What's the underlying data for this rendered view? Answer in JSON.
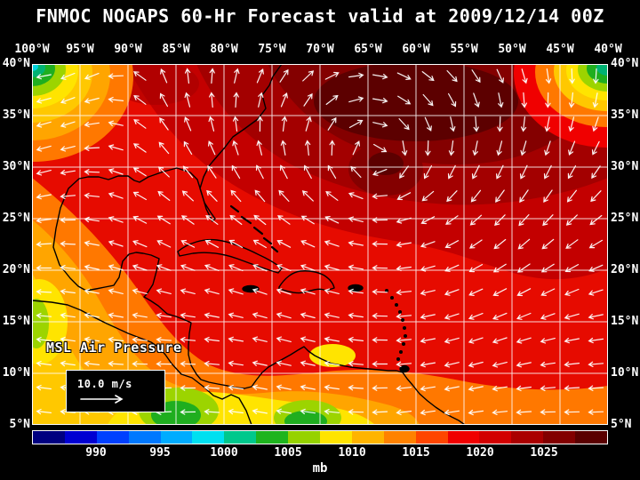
{
  "title": "FNMOC NOGAPS 60-Hr Forecast valid at 2009/12/14 00Z",
  "map": {
    "label": "MSL Air Pressure",
    "wind_legend": "10.0 m/s",
    "lon_labels": [
      "100°W",
      "95°W",
      "90°W",
      "85°W",
      "80°W",
      "75°W",
      "70°W",
      "65°W",
      "60°W",
      "55°W",
      "50°W",
      "45°W",
      "40°W"
    ],
    "lat_labels": [
      "40°N",
      "35°N",
      "30°N",
      "25°N",
      "20°N",
      "15°N",
      "10°N",
      "5°N"
    ]
  },
  "colorbar": {
    "unit": "mb",
    "tick_labels": [
      "990",
      "995",
      "1000",
      "1005",
      "1010",
      "1015",
      "1020",
      "1025"
    ],
    "colors": [
      "#000080",
      "#0000d2",
      "#0040ff",
      "#0078ff",
      "#00acff",
      "#00e0f0",
      "#00c88c",
      "#1eb41e",
      "#96d200",
      "#ffe400",
      "#ffb400",
      "#ff8200",
      "#ff4600",
      "#f00000",
      "#d20000",
      "#aa0000",
      "#820000",
      "#5a0000"
    ]
  },
  "chart_data": {
    "type": "heatmap",
    "title": "FNMOC NOGAPS 60-Hr Forecast valid at 2009/12/14 00Z",
    "field": "MSL Air Pressure",
    "unit": "mb",
    "x_ticks": [
      "100°W",
      "95°W",
      "90°W",
      "85°W",
      "80°W",
      "75°W",
      "70°W",
      "65°W",
      "60°W",
      "55°W",
      "50°W",
      "45°W",
      "40°W"
    ],
    "y_ticks": [
      "40°N",
      "35°N",
      "30°N",
      "25°N",
      "20°N",
      "15°N",
      "10°N",
      "5°N"
    ],
    "colorbar_ticks_mb": [
      990,
      995,
      1000,
      1005,
      1010,
      1015,
      1020,
      1025
    ],
    "wind_reference_m_s": 10.0,
    "features": [
      {
        "feature": "subtropical high with clockwise wind circulation",
        "approx_center": "32°N 65°W",
        "approx_peak_mb": 1026
      },
      {
        "feature": "broad 1015-1022 mb (red to dark red) field over western Atlantic and Caribbean"
      },
      {
        "feature": "1007-1013 mb (orange) over Gulf of Mexico, Mexico and Central America"
      },
      {
        "feature": "~1002-1007 mb (yellow-green) pockets at NW corner, NE corner, near Panama and northern South America"
      },
      {
        "feature": "easterly trade-wind vectors across the tropics"
      }
    ]
  }
}
